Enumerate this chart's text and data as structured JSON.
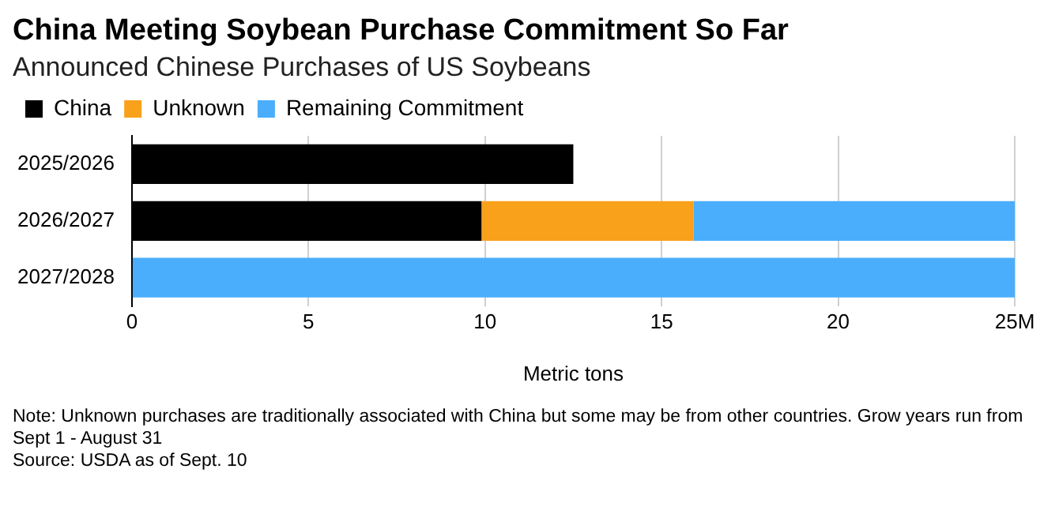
{
  "chart_data": {
    "type": "bar",
    "orientation": "horizontal",
    "stacked": true,
    "title": "China Meeting Soybean Purchase Commitment So Far",
    "subtitle": "Announced Chinese Purchases of US Soybeans",
    "xlabel": "Metric tons",
    "categories": [
      "2025/2026",
      "2026/2027",
      "2027/2028"
    ],
    "series": [
      {
        "name": "China",
        "color": "#000000",
        "values": [
          12.5,
          9.9,
          null
        ]
      },
      {
        "name": "Unknown",
        "color": "#f9a11b",
        "values": [
          null,
          6.0,
          null
        ]
      },
      {
        "name": "Remaining Commitment",
        "color": "#4aaefc",
        "values": [
          null,
          9.1,
          25
        ]
      }
    ],
    "xlim": [
      0,
      25
    ],
    "xticks": [
      0,
      5,
      10,
      15,
      20,
      {
        "value": 25,
        "label": "25M"
      }
    ],
    "grid": "x",
    "legend": "top left",
    "annotations": [
      "Note: Unknown purchases are traditionally associated with China but some may be from other countries. Grow years run from Sept 1 - August 31",
      "Source: USDA as of Sept. 10"
    ]
  }
}
